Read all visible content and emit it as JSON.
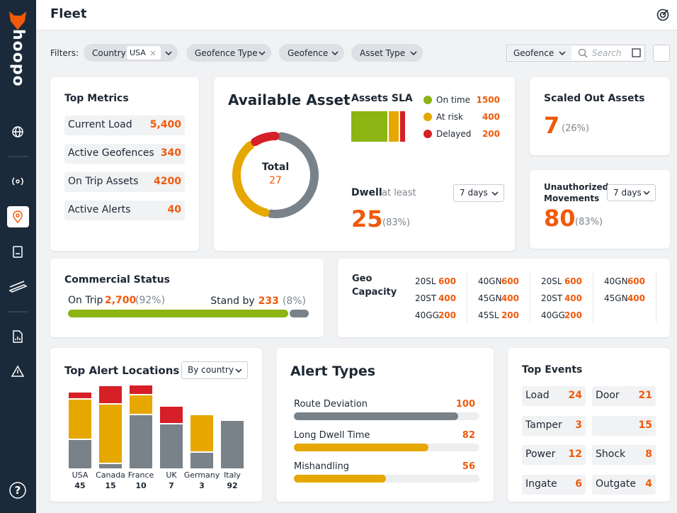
{
  "brand": "hoopo",
  "help": "?",
  "header": {
    "title": "Fleet"
  },
  "filters": {
    "label": "Filters:",
    "chips": [
      {
        "label": "Country",
        "value": "USA"
      },
      {
        "label": "Geofence Type"
      },
      {
        "label": "Geofence"
      },
      {
        "label": "Asset Type"
      }
    ],
    "select": "Geofence",
    "search": "Search"
  },
  "top_metrics": {
    "title": "Top Metrics",
    "items": [
      {
        "label": "Current Load",
        "value": "5,400"
      },
      {
        "label": "Active Geofences",
        "value": "340"
      },
      {
        "label": "On Trip Assets",
        "value": "4200"
      },
      {
        "label": "Active Alerts",
        "value": "40"
      }
    ]
  },
  "available_asset": {
    "title": "Available Asset",
    "total_label": "Total",
    "total": 27,
    "segments": [
      {
        "color": "#798189",
        "value": 14
      },
      {
        "color": "#e6a700",
        "value": 10
      },
      {
        "color": "#d61f26",
        "value": 3
      }
    ]
  },
  "assets_sla": {
    "title": "Assets SLA",
    "items": [
      {
        "label": "On time",
        "value": 1500,
        "color": "#8cb412"
      },
      {
        "label": "At risk",
        "value": 400,
        "color": "#e6a700"
      },
      {
        "label": "Delayed",
        "value": 200,
        "color": "#d61f26"
      }
    ]
  },
  "dwell": {
    "label": "Dwell",
    "qualifier": "at least",
    "period": "7 days",
    "value": 25,
    "percent": "(83%)"
  },
  "scaled_out": {
    "title": "Scaled Out Assets",
    "value": 7,
    "percent": "(26%)"
  },
  "unauthorized": {
    "title": "Unauthorized Movements",
    "period": "7 days",
    "value": 80,
    "percent": "(83%)"
  },
  "commercial": {
    "title": "Commercial Status",
    "items": [
      {
        "label": "On Trip",
        "value": 2700,
        "value_label": "2,700",
        "percent": "(92%)",
        "color": "#8cb412"
      },
      {
        "label": "Stand by",
        "value": 233,
        "percent": "(8%)",
        "color": "#798189"
      }
    ]
  },
  "geo": {
    "title": "Geo Capacity",
    "columns": [
      [
        {
          "code": "20SL",
          "value": 600
        },
        {
          "code": "20ST",
          "value": 400
        },
        {
          "code": "40GG",
          "value": 200
        }
      ],
      [
        {
          "code": "40GN",
          "value": 600
        },
        {
          "code": "45GN",
          "value": 400
        },
        {
          "code": "45SL",
          "value": 200
        }
      ],
      [
        {
          "code": "20SL",
          "value": 600
        },
        {
          "code": "20ST",
          "value": 400
        },
        {
          "code": "40GG",
          "value": 200
        }
      ],
      [
        {
          "code": "40GN",
          "value": 600
        },
        {
          "code": "45GN",
          "value": 400
        }
      ]
    ]
  },
  "alert_locations": {
    "title": "Top Alert Locations",
    "filter": "By country",
    "categories": [
      "USA",
      "Canada",
      "France",
      "UK",
      "Germany",
      "Italy"
    ],
    "counts": [
      45,
      15,
      10,
      7,
      3,
      92
    ],
    "series": [
      {
        "color": "#798189",
        "values": [
          40,
          6,
          75,
          62,
          22,
          67
        ]
      },
      {
        "color": "#e6a700",
        "values": [
          55,
          82,
          26,
          0,
          51,
          0
        ]
      },
      {
        "color": "#d61f26",
        "values": [
          8,
          24,
          12,
          23,
          0,
          0
        ]
      }
    ]
  },
  "alert_types": {
    "title": "Alert Types",
    "items": [
      {
        "label": "Route Deviation",
        "value": 100,
        "color": "#798189"
      },
      {
        "label": "Long Dwell Time",
        "value": 82,
        "color": "#e6a700"
      },
      {
        "label": "Mishandling",
        "value": 56,
        "color": "#e6a700"
      }
    ]
  },
  "top_events": {
    "title": "Top Events",
    "items": [
      {
        "label": "Load",
        "value": 24
      },
      {
        "label": "Door",
        "value": 21
      },
      {
        "label": "Tamper",
        "value": 3
      },
      {
        "label": null,
        "value": 15
      },
      {
        "label": "Power",
        "value": 12
      },
      {
        "label": "Shock",
        "value": 8
      },
      {
        "label": "Ingate",
        "value": 6
      },
      {
        "label": "Outgate",
        "value": 4
      }
    ]
  }
}
